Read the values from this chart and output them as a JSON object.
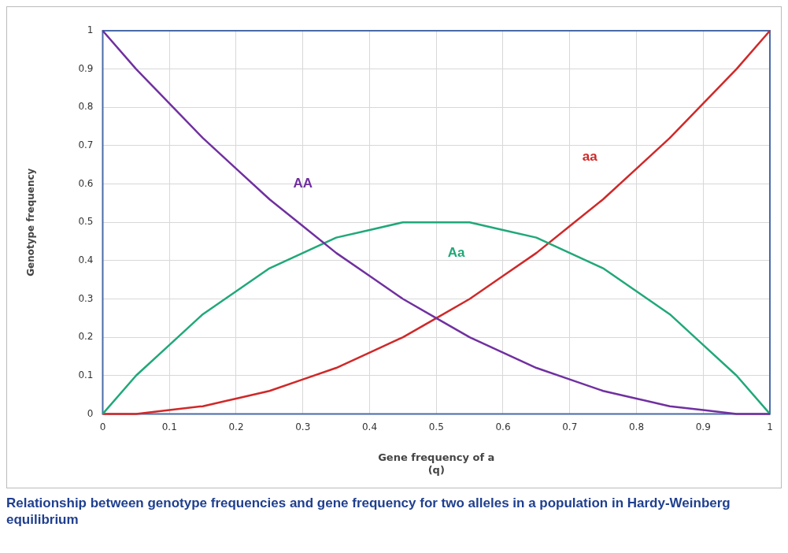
{
  "chart_data": {
    "type": "line",
    "xlabel": "Gene frequency of a\n(q)",
    "ylabel": "Genotype frequency",
    "x": [
      0,
      0.05,
      0.1,
      0.15,
      0.2,
      0.25,
      0.3,
      0.35,
      0.4,
      0.45,
      0.5,
      0.55,
      0.6,
      0.65,
      0.7,
      0.75,
      0.8,
      0.85,
      0.9,
      0.95,
      1
    ],
    "series": [
      {
        "name": "AA",
        "color": "#7030a0",
        "values": [
          1,
          0.9,
          0.81,
          0.72,
          0.64,
          0.56,
          0.49,
          0.42,
          0.36,
          0.3,
          0.25,
          0.2,
          0.16,
          0.12,
          0.09,
          0.06,
          0.04,
          0.02,
          0.01,
          0,
          0
        ]
      },
      {
        "name": "Aa",
        "color": "#20a878",
        "values": [
          0,
          0.1,
          0.18,
          0.26,
          0.32,
          0.38,
          0.42,
          0.46,
          0.48,
          0.5,
          0.5,
          0.5,
          0.48,
          0.46,
          0.42,
          0.38,
          0.32,
          0.26,
          0.18,
          0.1,
          0
        ]
      },
      {
        "name": "aa",
        "color": "#d02828",
        "values": [
          0,
          0,
          0.01,
          0.02,
          0.04,
          0.06,
          0.09,
          0.12,
          0.16,
          0.2,
          0.25,
          0.3,
          0.36,
          0.42,
          0.49,
          0.56,
          0.64,
          0.72,
          0.81,
          0.9,
          1
        ]
      }
    ],
    "xlim": [
      0,
      1
    ],
    "ylim": [
      0,
      1
    ],
    "xticks": [
      0,
      0.1,
      0.2,
      0.3,
      0.4,
      0.5,
      0.6,
      0.7,
      0.8,
      0.9,
      1
    ],
    "yticks": [
      0,
      0.1,
      0.2,
      0.3,
      0.4,
      0.5,
      0.6,
      0.7,
      0.8,
      0.9,
      1
    ],
    "grid": true,
    "legend": false,
    "marker": "none",
    "line_style": "solid",
    "annotations": [
      "Relationship between genotype frequencies and gene frequency for two alleles in a population in Hardy-Weinberg equilibrium"
    ]
  }
}
